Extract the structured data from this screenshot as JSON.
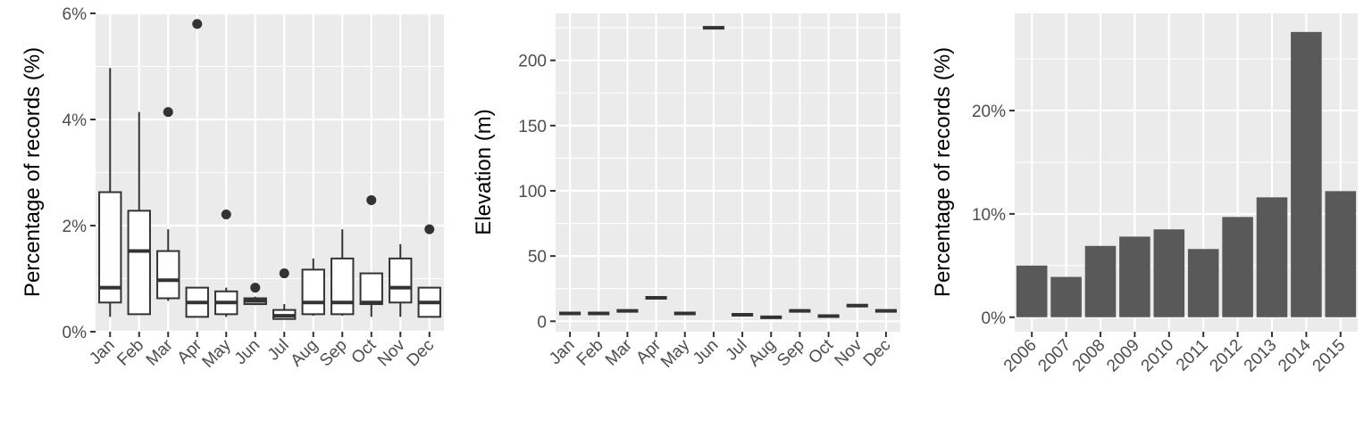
{
  "colors": {
    "panel_bg": "#ebebeb",
    "grid": "#ffffff",
    "bar_fill": "#595959",
    "box_stroke": "#333333",
    "box_fill": "#ffffff",
    "tick_text": "#4d4d4d"
  },
  "chart_data": [
    {
      "type": "box",
      "xlabel": "",
      "ylabel": "Percentage of records (%)",
      "ylim": [
        0,
        6
      ],
      "yticks": [
        0,
        2,
        4,
        6
      ],
      "ytick_labels": [
        "0%",
        "2%",
        "4%",
        "6%"
      ],
      "categories": [
        "Jan",
        "Feb",
        "Mar",
        "Apr",
        "May",
        "Jun",
        "Jul",
        "Aug",
        "Sep",
        "Oct",
        "Nov",
        "Dec"
      ],
      "boxes": [
        {
          "min": 0.28,
          "q1": 0.55,
          "median": 0.83,
          "q3": 2.63,
          "max": 4.97,
          "outliers": []
        },
        {
          "min": 0.33,
          "q1": 0.33,
          "median": 1.52,
          "q3": 2.28,
          "max": 4.14,
          "outliers": []
        },
        {
          "min": 0.58,
          "q1": 0.63,
          "median": 0.97,
          "q3": 1.52,
          "max": 1.93,
          "outliers": [
            4.14
          ]
        },
        {
          "min": 0.28,
          "q1": 0.28,
          "median": 0.55,
          "q3": 0.83,
          "max": 0.83,
          "outliers": [
            5.8
          ]
        },
        {
          "min": 0.28,
          "q1": 0.33,
          "median": 0.55,
          "q3": 0.76,
          "max": 0.83,
          "outliers": [
            2.21
          ]
        },
        {
          "min": 0.5,
          "q1": 0.52,
          "median": 0.58,
          "q3": 0.63,
          "max": 0.66,
          "outliers": [
            0.83
          ]
        },
        {
          "min": 0.24,
          "q1": 0.24,
          "median": 0.3,
          "q3": 0.41,
          "max": 0.52,
          "outliers": [
            1.1
          ]
        },
        {
          "min": 0.3,
          "q1": 0.33,
          "median": 0.55,
          "q3": 1.17,
          "max": 1.38,
          "outliers": []
        },
        {
          "min": 0.3,
          "q1": 0.33,
          "median": 0.55,
          "q3": 1.38,
          "max": 1.93,
          "outliers": []
        },
        {
          "min": 0.28,
          "q1": 0.52,
          "median": 0.55,
          "q3": 1.1,
          "max": 1.1,
          "outliers": [
            2.48
          ]
        },
        {
          "min": 0.28,
          "q1": 0.55,
          "median": 0.83,
          "q3": 1.38,
          "max": 1.65,
          "outliers": []
        },
        {
          "min": 0.28,
          "q1": 0.28,
          "median": 0.55,
          "q3": 0.83,
          "max": 0.83,
          "outliers": [
            1.93
          ]
        }
      ]
    },
    {
      "type": "box",
      "xlabel": "",
      "ylabel": "Elevation (m)",
      "ylim": [
        -8,
        236
      ],
      "yticks": [
        0,
        50,
        100,
        150,
        200
      ],
      "ytick_labels": [
        "0",
        "50",
        "100",
        "150",
        "200"
      ],
      "categories": [
        "Jan",
        "Feb",
        "Mar",
        "Apr",
        "May",
        "Jun",
        "Jul",
        "Aug",
        "Sep",
        "Oct",
        "Nov",
        "Dec"
      ],
      "boxes": [
        {
          "median": 6
        },
        {
          "median": 6
        },
        {
          "median": 8
        },
        {
          "median": 18
        },
        {
          "median": 6
        },
        {
          "median": 225
        },
        {
          "median": 5
        },
        {
          "median": 3
        },
        {
          "median": 8
        },
        {
          "median": 4
        },
        {
          "median": 12
        },
        {
          "median": 8
        }
      ]
    },
    {
      "type": "bar",
      "xlabel": "",
      "ylabel": "Percentage of records (%)",
      "ylim": [
        -1.4,
        29.4
      ],
      "yticks": [
        0,
        10,
        20
      ],
      "ytick_labels": [
        "0%",
        "10%",
        "20%"
      ],
      "categories": [
        "2006",
        "2007",
        "2008",
        "2009",
        "2010",
        "2011",
        "2012",
        "2013",
        "2014",
        "2015"
      ],
      "values": [
        5.0,
        3.9,
        6.9,
        7.8,
        8.5,
        6.6,
        9.7,
        11.6,
        27.6,
        12.2
      ]
    }
  ]
}
